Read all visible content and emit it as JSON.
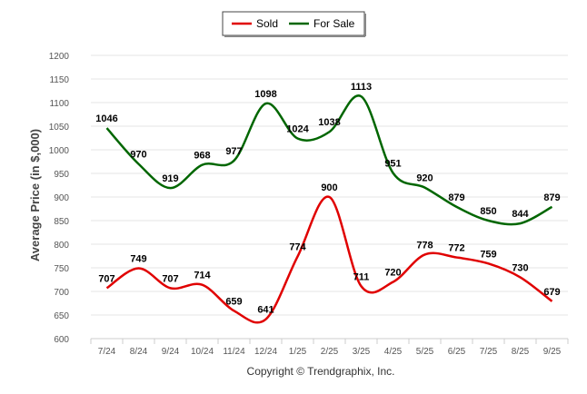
{
  "chart_data": {
    "type": "line",
    "categories": [
      "7/24",
      "8/24",
      "9/24",
      "10/24",
      "11/24",
      "12/24",
      "1/25",
      "2/25",
      "3/25",
      "4/25",
      "5/25",
      "6/25",
      "7/25",
      "8/25",
      "9/25"
    ],
    "series": [
      {
        "name": "Sold",
        "color": "#e00000",
        "values": [
          707,
          749,
          707,
          714,
          659,
          641,
          774,
          900,
          711,
          720,
          778,
          772,
          759,
          730,
          679
        ]
      },
      {
        "name": "For Sale",
        "color": "#006600",
        "values": [
          1046,
          970,
          919,
          968,
          977,
          1098,
          1024,
          1038,
          1113,
          951,
          920,
          879,
          850,
          844,
          879
        ]
      }
    ],
    "ylabel": "Average Price (in $,000)",
    "ylim": [
      600,
      1200
    ],
    "yticks": [
      600,
      650,
      700,
      750,
      800,
      850,
      900,
      950,
      1000,
      1050,
      1100,
      1150,
      1200
    ],
    "legend": {
      "position": "top-center"
    },
    "footer": "Copyright © Trendgraphix, Inc."
  }
}
